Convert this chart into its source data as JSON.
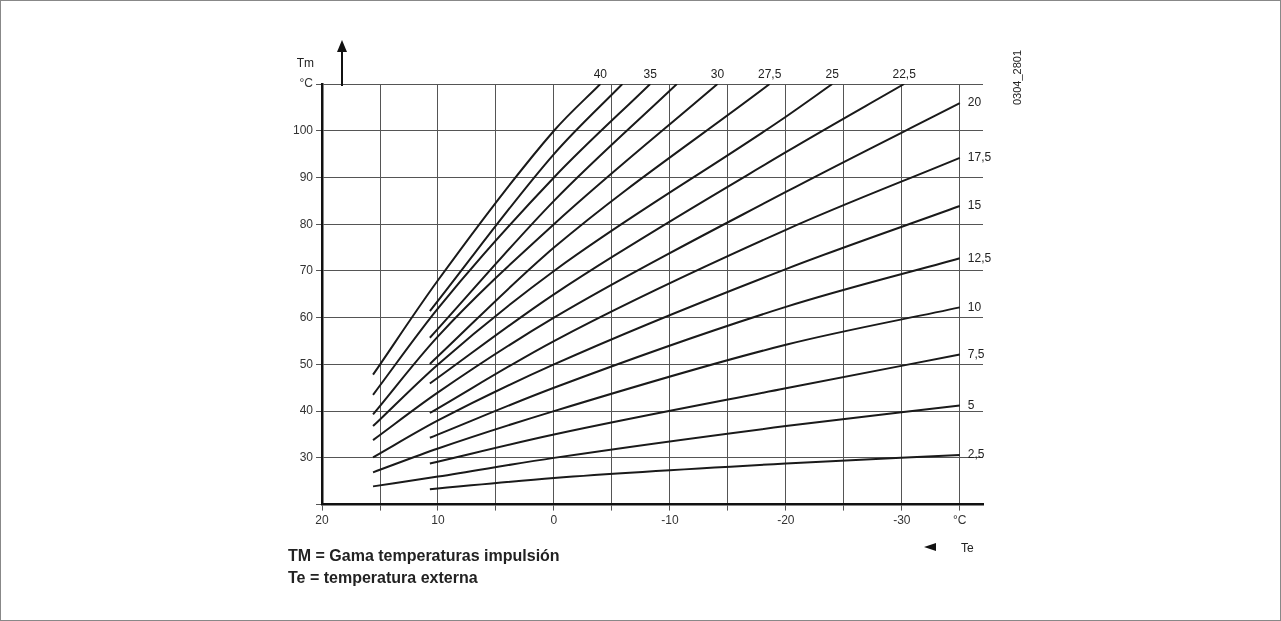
{
  "chart_data": {
    "type": "line",
    "ylabel": "Tm",
    "xlabel": "Te",
    "xlim": [
      20,
      -37
    ],
    "ylim": [
      20,
      110
    ],
    "xticks": [
      20,
      {
        "value": 15,
        "label": null
      },
      10,
      {
        "value": 5,
        "label": null
      },
      0,
      {
        "value": -5,
        "label": null
      },
      -10,
      {
        "value": -15,
        "label": null
      },
      -20,
      {
        "value": -25,
        "label": null
      },
      -30,
      {
        "value": -35,
        "label": "°C"
      }
    ],
    "yticks": [
      {
        "value": 20,
        "label": null
      },
      30,
      40,
      50,
      60,
      70,
      80,
      90,
      100,
      {
        "value": 110,
        "label": "°C"
      }
    ],
    "grid": true,
    "legend": false,
    "marker": "none",
    "line_style": "solid",
    "annotations": [
      "TM = Gama temperaturas impulsión",
      "Te = temperatura externa",
      "0304_2801"
    ],
    "series": [
      {
        "name": "40",
        "color": "#1a1a1a",
        "x": [
          15.6,
          10,
          0,
          -4.0
        ],
        "values": [
          47.8,
          68,
          100,
          110
        ]
      },
      {
        "color": "#1a1a1a",
        "x": [
          10.7,
          0,
          -5.9
        ],
        "values": [
          61.4,
          95,
          110
        ]
      },
      {
        "name": "35",
        "color": "#1a1a1a",
        "x": [
          15.6,
          10,
          0,
          -8.3
        ],
        "values": [
          43.5,
          62,
          90,
          110
        ]
      },
      {
        "color": "#1a1a1a",
        "x": [
          10.7,
          0,
          -10.6
        ],
        "values": [
          55.7,
          85,
          110
        ]
      },
      {
        "name": "30",
        "color": "#1a1a1a",
        "x": [
          15.6,
          10,
          0,
          -14.1
        ],
        "values": [
          39.3,
          56,
          80,
          110
        ]
      },
      {
        "name": "27,5",
        "color": "#1a1a1a",
        "x": [
          10.7,
          0,
          -18.6
        ],
        "values": [
          50.1,
          75,
          110
        ]
      },
      {
        "name": "25",
        "color": "#1a1a1a",
        "x": [
          15.6,
          10,
          0,
          -20,
          -24.0
        ],
        "values": [
          36.8,
          50,
          70,
          103,
          110
        ]
      },
      {
        "name": "22,5",
        "color": "#1a1a1a",
        "x": [
          10.7,
          0,
          -20,
          -30.2
        ],
        "values": [
          45.9,
          65,
          95.4,
          110
        ]
      },
      {
        "name": "20",
        "color": "#1a1a1a",
        "x": [
          15.6,
          10,
          0,
          -20,
          -35
        ],
        "values": [
          33.8,
          44,
          60,
          86.9,
          105.9
        ]
      },
      {
        "name": "17,5",
        "color": "#1a1a1a",
        "x": [
          10.7,
          0,
          -20,
          -35
        ],
        "values": [
          39.6,
          55,
          78.8,
          94.2
        ]
      },
      {
        "name": "15",
        "color": "#1a1a1a",
        "x": [
          15.6,
          10,
          0,
          -20,
          -35
        ],
        "values": [
          30.1,
          38,
          50,
          70.4,
          83.9
        ]
      },
      {
        "name": "12,5",
        "color": "#1a1a1a",
        "x": [
          10.7,
          0,
          -20,
          -35
        ],
        "values": [
          34.3,
          45,
          62.3,
          72.7
        ]
      },
      {
        "name": "10",
        "color": "#1a1a1a",
        "x": [
          15.6,
          10,
          0,
          -20,
          -35
        ],
        "values": [
          26.9,
          32,
          40,
          54.2,
          62.2
        ]
      },
      {
        "name": "7,5",
        "color": "#1a1a1a",
        "x": [
          10.7,
          0,
          -20,
          -35
        ],
        "values": [
          28.8,
          35,
          44.9,
          52.1
        ]
      },
      {
        "name": "5",
        "color": "#1a1a1a",
        "x": [
          15.6,
          10,
          0,
          -20,
          -35
        ],
        "values": [
          23.9,
          26,
          30,
          36.8,
          41.2
        ]
      },
      {
        "name": "2,5",
        "color": "#1a1a1a",
        "x": [
          10.7,
          0,
          -20,
          -35
        ],
        "values": [
          23.3,
          25.7,
          28.8,
          30.6
        ]
      }
    ]
  }
}
